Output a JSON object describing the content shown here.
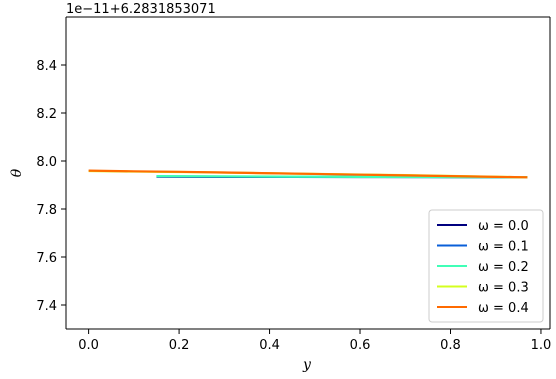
{
  "chart_data": {
    "type": "line",
    "title": "",
    "xlabel": "y",
    "ylabel": "θ",
    "offset_text": "1e−11+6.2831853071",
    "xlim": [
      -0.05,
      1.02
    ],
    "ylim": [
      7.3,
      8.6
    ],
    "xticks": [
      0.0,
      0.2,
      0.4,
      0.6,
      0.8,
      1.0
    ],
    "xtick_labels": [
      "0.0",
      "0.2",
      "0.4",
      "0.6",
      "0.8",
      "1.0"
    ],
    "yticks": [
      7.4,
      7.6,
      7.8,
      8.0,
      8.2,
      8.4
    ],
    "ytick_labels": [
      "7.4",
      "7.6",
      "7.8",
      "8.0",
      "8.2",
      "8.4"
    ],
    "grid": false,
    "legend_position": "lower-right",
    "series": [
      {
        "name": "ω = 0.0",
        "color": "#00007f",
        "x": [
          0.15,
          0.3,
          0.45,
          0.6,
          0.75,
          0.97
        ],
        "y": [
          7.935,
          7.934,
          7.934,
          7.933,
          7.933,
          7.932
        ]
      },
      {
        "name": "ω = 0.1",
        "color": "#0a5fd8",
        "x": [
          0.15,
          0.3,
          0.45,
          0.6,
          0.75,
          0.97
        ],
        "y": [
          7.936,
          7.935,
          7.934,
          7.934,
          7.933,
          7.932
        ]
      },
      {
        "name": "ω = 0.2",
        "color": "#40ffb7",
        "x": [
          0.15,
          0.3,
          0.45,
          0.6,
          0.75,
          0.97
        ],
        "y": [
          7.937,
          7.936,
          7.935,
          7.934,
          7.933,
          7.932
        ]
      },
      {
        "name": "ω = 0.3",
        "color": "#d4ff1f",
        "x": [
          0.0,
          0.1,
          0.25,
          0.4,
          0.55,
          0.7,
          0.85,
          0.97
        ],
        "y": [
          7.958,
          7.956,
          7.953,
          7.949,
          7.945,
          7.941,
          7.936,
          7.932
        ]
      },
      {
        "name": "ω = 0.4",
        "color": "#ff6a00",
        "x": [
          0.0,
          0.1,
          0.2,
          0.3,
          0.4,
          0.5,
          0.6,
          0.7,
          0.8,
          0.9,
          0.97
        ],
        "y": [
          7.96,
          7.957,
          7.955,
          7.952,
          7.949,
          7.946,
          7.943,
          7.94,
          7.937,
          7.934,
          7.932
        ]
      }
    ]
  }
}
